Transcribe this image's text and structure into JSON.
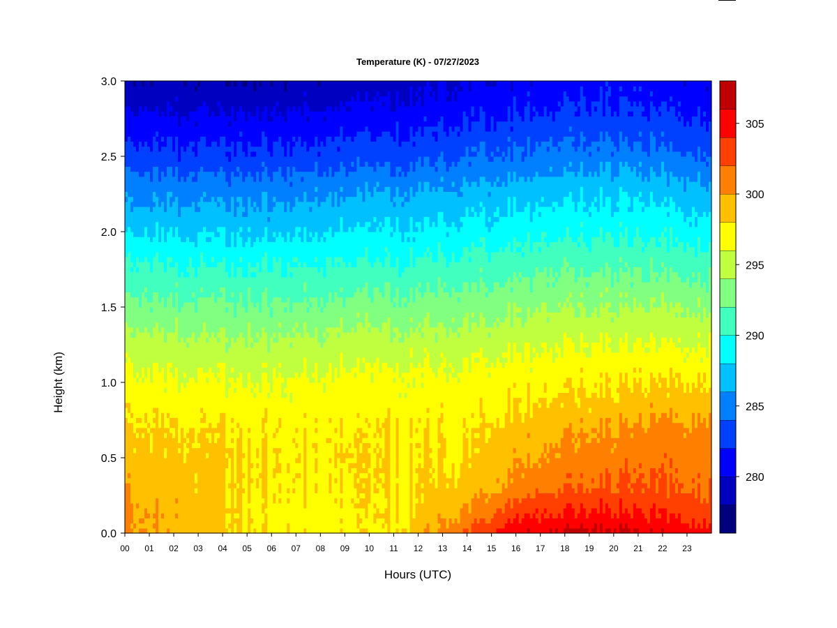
{
  "chart_data": {
    "type": "heatmap",
    "title": "Temperature (K) - 07/27/2023",
    "xlabel": "Hours (UTC)",
    "ylabel": "Height (km)",
    "xlim": [
      0,
      24
    ],
    "ylim": [
      0.0,
      3.0
    ],
    "x_ticks": [
      "00",
      "01",
      "02",
      "03",
      "04",
      "05",
      "06",
      "07",
      "08",
      "09",
      "10",
      "11",
      "12",
      "13",
      "14",
      "15",
      "16",
      "17",
      "18",
      "19",
      "20",
      "21",
      "22",
      "23"
    ],
    "y_ticks": [
      "0.0",
      "0.5",
      "1.0",
      "1.5",
      "2.0",
      "2.5",
      "3.0"
    ],
    "colorbar": {
      "range": [
        276,
        308
      ],
      "levels": [
        276,
        278,
        280,
        282,
        284,
        286,
        288,
        290,
        292,
        294,
        296,
        298,
        300,
        302,
        304,
        306,
        308
      ],
      "colors": [
        "#00007f",
        "#0000c0",
        "#0000ff",
        "#0040ff",
        "#0080ff",
        "#00c0ff",
        "#00ffff",
        "#40ffbf",
        "#80ff80",
        "#bfff40",
        "#ffff00",
        "#ffc000",
        "#ff8000",
        "#ff4000",
        "#ff0000",
        "#c00000",
        "#800000"
      ],
      "tick_labels": [
        "280",
        "285",
        "290",
        "295",
        "300",
        "305"
      ],
      "tick_values": [
        280,
        285,
        290,
        295,
        300,
        305
      ]
    },
    "profiles": {
      "heights_km": [
        0.0,
        0.1,
        0.2,
        0.3,
        0.5,
        0.7,
        0.8,
        1.0,
        1.2,
        1.5,
        1.8,
        2.0,
        2.3,
        2.5,
        2.8,
        3.0
      ],
      "by_hour": [
        {
          "hour": 0,
          "temps": [
            300.5,
            300.5,
            300.2,
            299.8,
            299.2,
            298.4,
            297.8,
            296.8,
            295.4,
            292.8,
            290.2,
            288.0,
            285.2,
            283.0,
            280.2,
            278.6
          ]
        },
        {
          "hour": 4,
          "temps": [
            298.5,
            298.5,
            298.4,
            298.3,
            298.3,
            297.8,
            297.2,
            296.2,
            294.8,
            292.4,
            289.6,
            287.6,
            284.8,
            282.6,
            279.8,
            278.2
          ]
        },
        {
          "hour": 7,
          "temps": [
            297.5,
            297.2,
            297.3,
            297.6,
            297.8,
            297.6,
            297.2,
            296.3,
            295.0,
            292.4,
            289.8,
            287.8,
            285.0,
            282.8,
            280.0,
            278.4
          ]
        },
        {
          "hour": 11,
          "temps": [
            297.7,
            297.6,
            297.7,
            297.8,
            297.9,
            297.7,
            297.3,
            296.6,
            295.3,
            292.8,
            290.0,
            288.2,
            285.6,
            283.2,
            280.6,
            279.0
          ]
        },
        {
          "hour": 14,
          "temps": [
            302.2,
            300.8,
            299.6,
            298.8,
            298.0,
            297.8,
            297.4,
            296.8,
            295.6,
            293.2,
            290.6,
            288.8,
            286.2,
            284.0,
            281.4,
            280.0
          ]
        },
        {
          "hour": 16,
          "temps": [
            305.8,
            304.0,
            302.4,
            300.8,
            299.6,
            298.8,
            298.0,
            297.3,
            296.0,
            293.6,
            291.0,
            289.2,
            286.6,
            284.4,
            281.8,
            280.6
          ]
        },
        {
          "hour": 18,
          "temps": [
            306.4,
            304.6,
            303.2,
            302.0,
            300.6,
            299.6,
            298.6,
            297.6,
            296.3,
            294.0,
            291.4,
            289.6,
            287.0,
            284.8,
            282.2,
            281.0
          ]
        },
        {
          "hour": 20,
          "temps": [
            306.6,
            304.8,
            303.6,
            302.4,
            301.2,
            300.2,
            299.2,
            297.8,
            296.4,
            294.0,
            291.4,
            289.8,
            287.2,
            285.0,
            282.4,
            281.2
          ]
        },
        {
          "hour": 22,
          "temps": [
            305.8,
            304.2,
            303.2,
            302.2,
            301.4,
            300.6,
            299.6,
            298.2,
            296.6,
            294.0,
            291.2,
            289.4,
            286.8,
            284.6,
            282.0,
            280.8
          ]
        },
        {
          "hour": 24,
          "temps": [
            304.8,
            303.4,
            302.6,
            301.8,
            301.2,
            300.6,
            299.6,
            298.0,
            296.4,
            293.8,
            291.0,
            289.0,
            286.4,
            284.2,
            281.6,
            280.4
          ]
        }
      ]
    },
    "grid": false,
    "legend": "colorbar-right"
  }
}
